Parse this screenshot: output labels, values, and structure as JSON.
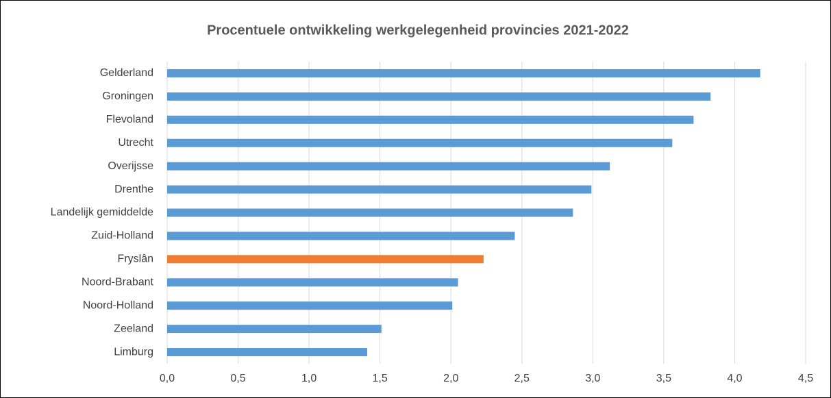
{
  "chart_data": {
    "type": "barh",
    "title": "Procentuele ontwikkeling werkgelegenheid provincies 2021-2022",
    "categories": [
      "Gelderland",
      "Groningen",
      "Flevoland",
      "Utrecht",
      "Overijsse",
      "Drenthe",
      "Landelijk gemiddelde",
      "Zuid-Holland",
      "Fryslân",
      "Noord-Brabant",
      "Noord-Holland",
      "Zeeland",
      "Limburg"
    ],
    "values": [
      4.18,
      3.83,
      3.71,
      3.56,
      3.12,
      2.99,
      2.86,
      2.45,
      2.23,
      2.05,
      2.01,
      1.51,
      1.41
    ],
    "colors": [
      "#5b9bd5",
      "#5b9bd5",
      "#5b9bd5",
      "#5b9bd5",
      "#5b9bd5",
      "#5b9bd5",
      "#5b9bd5",
      "#5b9bd5",
      "#ed7d31",
      "#5b9bd5",
      "#5b9bd5",
      "#5b9bd5",
      "#5b9bd5"
    ],
    "xlim": [
      0,
      4.5
    ],
    "xticks": [
      {
        "value": 0,
        "label": "0,0"
      },
      {
        "value": 0.5,
        "label": "0,5"
      },
      {
        "value": 1,
        "label": "1,0"
      },
      {
        "value": 1.5,
        "label": "1,5"
      },
      {
        "value": 2,
        "label": "2,0"
      },
      {
        "value": 2.5,
        "label": "2,5"
      },
      {
        "value": 3,
        "label": "3,0"
      },
      {
        "value": 3.5,
        "label": "3,5"
      },
      {
        "value": 4,
        "label": "4,0"
      },
      {
        "value": 4.5,
        "label": "4,5"
      }
    ],
    "grid": true
  }
}
